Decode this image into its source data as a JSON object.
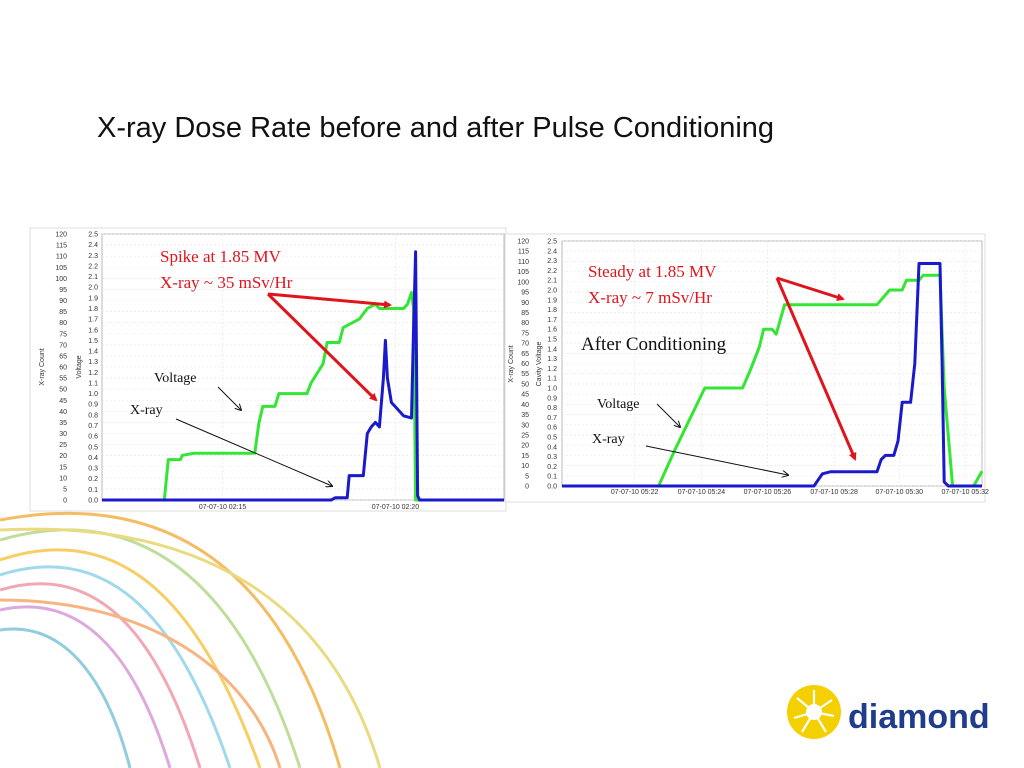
{
  "title": "X-ray Dose Rate before and after Pulse Conditioning",
  "colors": {
    "voltage": "#33e633",
    "xray": "#1a1acc",
    "arrow": "#e0141c",
    "logo_blue": "#1f3d8c",
    "logo_yellow": "#f5d000"
  },
  "logo": {
    "text": "diamond",
    "icon": "sunburst-icon"
  },
  "chart_data": [
    {
      "type": "line",
      "y_left_label": "X-ray Count",
      "y_right_label": "Voltage",
      "y_left_ticks": [
        "0",
        "5",
        "10",
        "15",
        "20",
        "25",
        "30",
        "35",
        "40",
        "45",
        "50",
        "55",
        "60",
        "65",
        "70",
        "75",
        "80",
        "85",
        "90",
        "95",
        "100",
        "105",
        "110",
        "115",
        "120"
      ],
      "y_right_ticks": [
        "0.0",
        "0.1",
        "0.2",
        "0.3",
        "0.4",
        "0.5",
        "0.6",
        "0.7",
        "0.8",
        "0.9",
        "1.0",
        "1.1",
        "1.2",
        "1.3",
        "1.4",
        "1.5",
        "1.6",
        "1.7",
        "1.8",
        "1.9",
        "2.0",
        "2.1",
        "2.2",
        "2.3",
        "2.4",
        "2.5"
      ],
      "ylim_left": [
        0,
        120
      ],
      "ylim_right": [
        0,
        2.5
      ],
      "xlim": [
        0,
        100
      ],
      "x_ticks": [
        {
          "x": 30,
          "label": "07-07-10 02:15"
        },
        {
          "x": 73,
          "label": "07-07-10 02:20"
        }
      ],
      "series": [
        {
          "name": "Voltage",
          "axis": "right",
          "points": [
            [
              0,
              0
            ],
            [
              15.5,
              0
            ],
            [
              16.5,
              0.38
            ],
            [
              19.5,
              0.38
            ],
            [
              20,
              0.42
            ],
            [
              23,
              0.44
            ],
            [
              38,
              0.44
            ],
            [
              39,
              0.72
            ],
            [
              40,
              0.88
            ],
            [
              43,
              0.88
            ],
            [
              44,
              1.0
            ],
            [
              51,
              1.0
            ],
            [
              52,
              1.1
            ],
            [
              55,
              1.28
            ],
            [
              56,
              1.48
            ],
            [
              59,
              1.48
            ],
            [
              60,
              1.62
            ],
            [
              64,
              1.7
            ],
            [
              66,
              1.8
            ],
            [
              68,
              1.84
            ],
            [
              69,
              1.8
            ],
            [
              75,
              1.8
            ],
            [
              76,
              1.84
            ],
            [
              77,
              1.95
            ],
            [
              77.5,
              1.8
            ],
            [
              78,
              0
            ],
            [
              100,
              0
            ]
          ]
        },
        {
          "name": "X-ray",
          "axis": "left",
          "points": [
            [
              0,
              0
            ],
            [
              57,
              0
            ],
            [
              58,
              1
            ],
            [
              61,
              1
            ],
            [
              61.5,
              11
            ],
            [
              65,
              11
            ],
            [
              66,
              30
            ],
            [
              67,
              33
            ],
            [
              68,
              35
            ],
            [
              69,
              33
            ],
            [
              70,
              55
            ],
            [
              70.5,
              72
            ],
            [
              71,
              55
            ],
            [
              72,
              44
            ],
            [
              73,
              42
            ],
            [
              75,
              38
            ],
            [
              77,
              37
            ],
            [
              77.5,
              78
            ],
            [
              78,
              112
            ],
            [
              78.5,
              2
            ],
            [
              79,
              0
            ],
            [
              100,
              0
            ]
          ]
        }
      ],
      "annotations": [
        {
          "text": "Spike at 1.85 MV"
        },
        {
          "text": "X-ray ~ 35 mSv/Hr"
        },
        {
          "text": "Voltage"
        },
        {
          "text": "X-ray"
        }
      ]
    },
    {
      "type": "line",
      "y_left_label": "X-ray Count",
      "y_right_label": "Cavity Voltage",
      "y_left_ticks": [
        "0",
        "5",
        "10",
        "15",
        "20",
        "25",
        "30",
        "35",
        "40",
        "45",
        "50",
        "55",
        "60",
        "65",
        "70",
        "75",
        "80",
        "85",
        "90",
        "95",
        "100",
        "105",
        "110",
        "115",
        "120"
      ],
      "y_right_ticks": [
        "0.0",
        "0.1",
        "0.2",
        "0.3",
        "0.4",
        "0.5",
        "0.6",
        "0.7",
        "0.8",
        "0.9",
        "1.0",
        "1.1",
        "1.2",
        "1.3",
        "1.4",
        "1.5",
        "1.6",
        "1.7",
        "1.8",
        "1.9",
        "2.0",
        "2.1",
        "2.2",
        "2.3",
        "2.4",
        "2.5"
      ],
      "ylim_left": [
        0,
        120
      ],
      "ylim_right": [
        0,
        2.5
      ],
      "xlim": [
        0,
        100
      ],
      "x_ticks": [
        {
          "x": 17.3,
          "label": "07-07-10 05:22"
        },
        {
          "x": 33.2,
          "label": "07-07-10 05:24"
        },
        {
          "x": 48.9,
          "label": "07-07-10 05:26"
        },
        {
          "x": 64.8,
          "label": "07-07-10 05:28"
        },
        {
          "x": 80.3,
          "label": "07-07-10 05:30"
        },
        {
          "x": 96,
          "label": "07-07-10 05:32"
        }
      ],
      "series": [
        {
          "name": "Voltage",
          "axis": "right",
          "points": [
            [
              0,
              0
            ],
            [
              23,
              0
            ],
            [
              27,
              0.38
            ],
            [
              34,
              1.0
            ],
            [
              43,
              1.0
            ],
            [
              45,
              1.2
            ],
            [
              47,
              1.42
            ],
            [
              48,
              1.6
            ],
            [
              50,
              1.6
            ],
            [
              51,
              1.55
            ],
            [
              52,
              1.7
            ],
            [
              53,
              1.85
            ],
            [
              75,
              1.85
            ],
            [
              77,
              1.95
            ],
            [
              78,
              2.0
            ],
            [
              81,
              2.0
            ],
            [
              82,
              2.1
            ],
            [
              85,
              2.1
            ],
            [
              86,
              2.15
            ],
            [
              90,
              2.15
            ],
            [
              91,
              1.0
            ],
            [
              93,
              0
            ],
            [
              98,
              0
            ],
            [
              100,
              0.15
            ]
          ]
        },
        {
          "name": "X-ray",
          "axis": "left",
          "points": [
            [
              0,
              0
            ],
            [
              60,
              0
            ],
            [
              61,
              3
            ],
            [
              62,
              6
            ],
            [
              64,
              7
            ],
            [
              75,
              7
            ],
            [
              76,
              13
            ],
            [
              77,
              15
            ],
            [
              79,
              15
            ],
            [
              80,
              22
            ],
            [
              81,
              41
            ],
            [
              83,
              41
            ],
            [
              84,
              60
            ],
            [
              85,
              109
            ],
            [
              90,
              109
            ],
            [
              90.5,
              60
            ],
            [
              91,
              2
            ],
            [
              92,
              0
            ],
            [
              100,
              0
            ]
          ]
        }
      ],
      "annotations": [
        {
          "text": "Steady at 1.85 MV"
        },
        {
          "text": "X-ray ~ 7 mSv/Hr"
        },
        {
          "text": "After Conditioning"
        },
        {
          "text": "Voltage"
        },
        {
          "text": "X-ray"
        }
      ]
    }
  ]
}
